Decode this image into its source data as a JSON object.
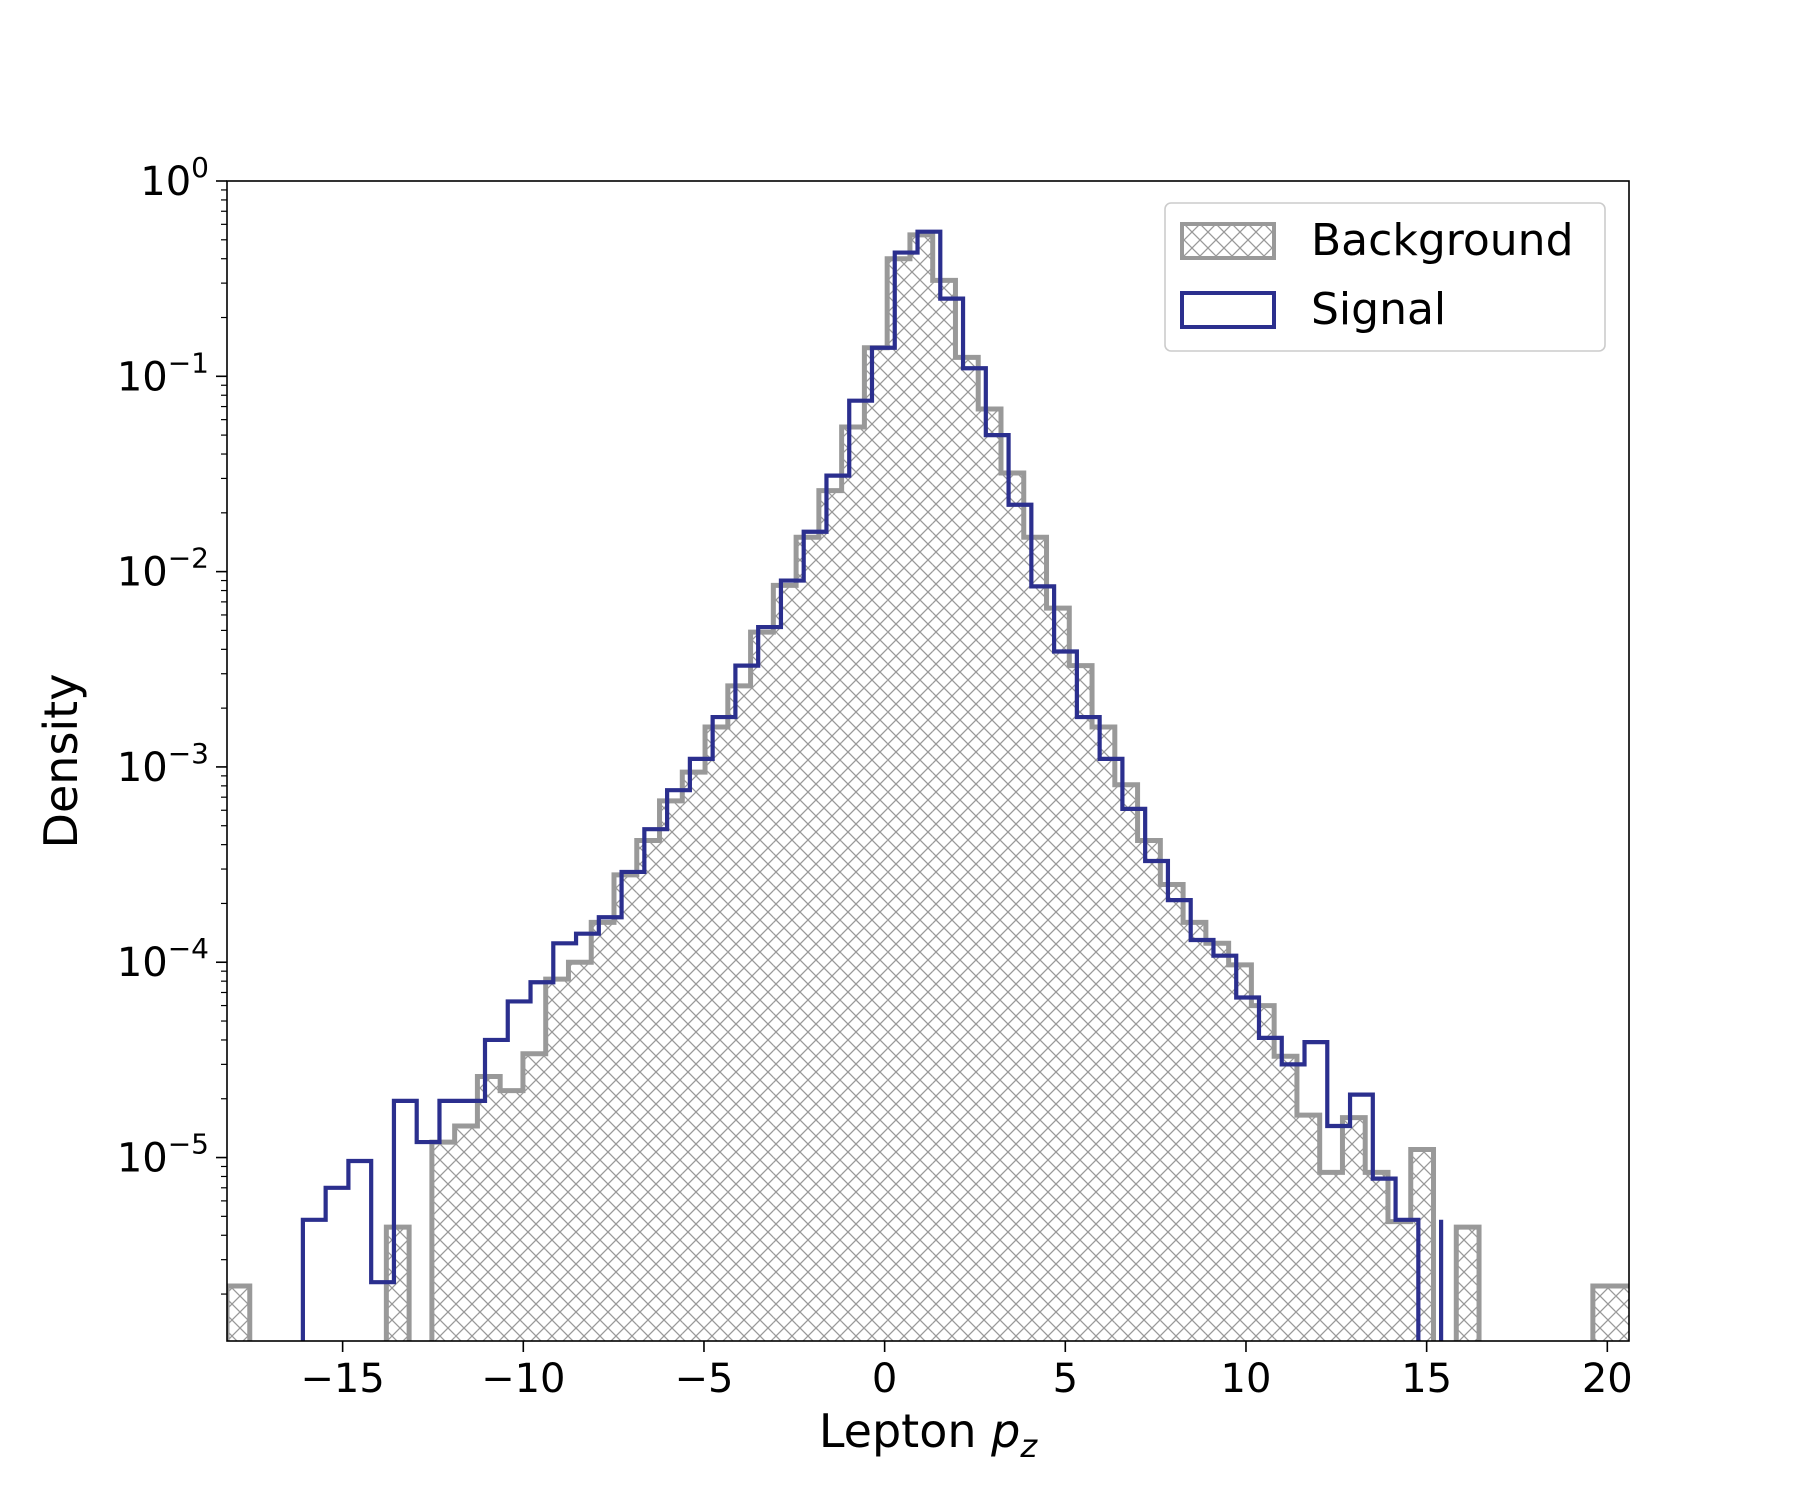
{
  "chart_data": {
    "type": "histogram",
    "xlabel": "Lepton",
    "xlabel_math": "p",
    "xlabel_sub": "z",
    "ylabel": "Density",
    "yscale": "log",
    "xlim": [
      -18.2,
      20.6
    ],
    "ylim": [
      1.15e-06,
      1.0
    ],
    "grid": false,
    "legend_position": "top-right",
    "x_ticks": [
      {
        "value": -15,
        "label": "−15"
      },
      {
        "value": -10,
        "label": "−10"
      },
      {
        "value": -5,
        "label": "−5"
      },
      {
        "value": 0,
        "label": "0"
      },
      {
        "value": 5,
        "label": "5"
      },
      {
        "value": 10,
        "label": "10"
      },
      {
        "value": 15,
        "label": "15"
      },
      {
        "value": 20,
        "label": "20"
      }
    ],
    "y_ticks": [
      {
        "value": 1,
        "base": "10",
        "exp": "0"
      },
      {
        "value": 0.1,
        "base": "10",
        "exp": "−1"
      },
      {
        "value": 0.01,
        "base": "10",
        "exp": "−2"
      },
      {
        "value": 0.001,
        "base": "10",
        "exp": "−3"
      },
      {
        "value": 0.0001,
        "base": "10",
        "exp": "−4"
      },
      {
        "value": 1e-05,
        "base": "10",
        "exp": "−5"
      }
    ],
    "series": [
      {
        "name": "Background",
        "color": "#999999",
        "style": "hatched-filled",
        "edges": [
          -18.2,
          -17.57,
          -16.94,
          -16.31,
          -15.68,
          -15.05,
          -14.42,
          -13.79,
          -13.16,
          -12.53,
          -11.9,
          -11.27,
          -10.64,
          -10.01,
          -9.38,
          -8.75,
          -8.12,
          -7.49,
          -6.86,
          -6.23,
          -5.6,
          -4.97,
          -4.34,
          -3.71,
          -3.08,
          -2.45,
          -1.82,
          -1.19,
          -0.56,
          0.07,
          0.7,
          1.33,
          1.96,
          2.59,
          3.22,
          3.85,
          4.48,
          5.11,
          5.74,
          6.37,
          7.0,
          7.63,
          8.26,
          8.89,
          9.52,
          10.15,
          10.78,
          11.41,
          12.04,
          12.67,
          13.3,
          13.93,
          14.56,
          15.19,
          15.82,
          16.45,
          17.08,
          17.71,
          18.34,
          18.97,
          19.6,
          20.23,
          20.6
        ],
        "values": [
          2.2e-06,
          0,
          0,
          0,
          0,
          0,
          0,
          4.4e-06,
          0,
          1.2e-05,
          1.45e-05,
          2.6e-05,
          2.2e-05,
          3.4e-05,
          8.2e-05,
          0.0001,
          0.00016,
          0.00028,
          0.00042,
          0.00067,
          0.00094,
          0.0016,
          0.0026,
          0.0049,
          0.0085,
          0.015,
          0.026,
          0.055,
          0.14,
          0.4,
          0.53,
          0.31,
          0.125,
          0.068,
          0.032,
          0.015,
          0.0065,
          0.0033,
          0.0016,
          0.00081,
          0.00042,
          0.00025,
          0.00016,
          0.000125,
          9.7e-05,
          6e-05,
          3.3e-05,
          1.65e-05,
          8.4e-06,
          1.6e-05,
          8.4e-06,
          4.7e-06,
          1.1e-05,
          0,
          4.4e-06,
          0,
          0,
          0,
          0,
          0,
          2.2e-06,
          2.2e-06,
          2.2e-06
        ]
      },
      {
        "name": "Signal",
        "color": "#2b2f8e",
        "style": "step-outline",
        "edges": [
          -16.1,
          -15.47,
          -14.84,
          -14.21,
          -13.58,
          -12.95,
          -12.32,
          -11.69,
          -11.06,
          -10.43,
          -9.8,
          -9.17,
          -8.54,
          -7.91,
          -7.28,
          -6.65,
          -6.02,
          -5.39,
          -4.76,
          -4.13,
          -3.5,
          -2.87,
          -2.24,
          -1.61,
          -0.98,
          -0.35,
          0.28,
          0.91,
          1.54,
          2.17,
          2.8,
          3.43,
          4.06,
          4.69,
          5.32,
          5.95,
          6.58,
          7.21,
          7.84,
          8.47,
          9.1,
          9.73,
          10.36,
          10.99,
          11.62,
          12.25,
          12.88,
          13.51,
          14.14,
          14.77,
          15.4
        ],
        "values": [
          4.8e-06,
          7e-06,
          9.6e-06,
          2.3e-06,
          1.95e-05,
          1.2e-05,
          1.95e-05,
          1.95e-05,
          4e-05,
          6.3e-05,
          7.9e-05,
          0.000125,
          0.00014,
          0.00017,
          0.00029,
          0.00048,
          0.00076,
          0.0011,
          0.0018,
          0.0033,
          0.0052,
          0.009,
          0.016,
          0.031,
          0.075,
          0.14,
          0.43,
          0.55,
          0.25,
          0.11,
          0.05,
          0.022,
          0.0084,
          0.0039,
          0.0018,
          0.0011,
          0.00061,
          0.00033,
          0.000208,
          0.00013,
          0.000108,
          6.6e-05,
          4.1e-05,
          3e-05,
          3.9e-05,
          1.45e-05,
          2.1e-05,
          7.8e-06,
          4.8e-06,
          0,
          4.8e-06
        ]
      }
    ]
  }
}
